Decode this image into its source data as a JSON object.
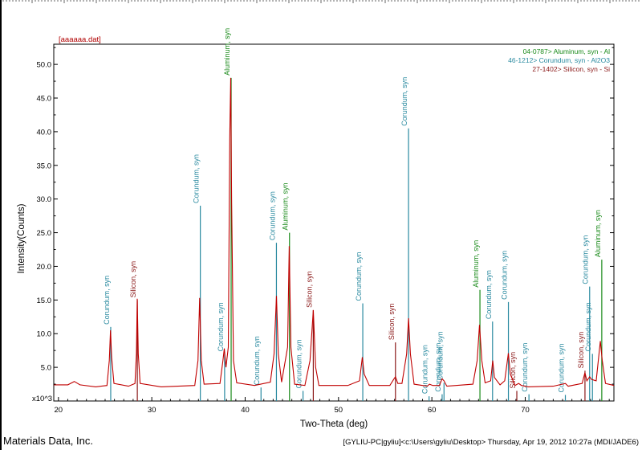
{
  "file_label": "[aaaaaa.dat]",
  "scale_mark": "x10^3",
  "footer_left": "Materials Data, Inc.",
  "footer_right": "[GYLIU-PC|gyliu]<c:\\Users\\gyliu\\Desktop> Thursday, Apr 19, 2012 10:27a (MDI/JADE6)",
  "colors": {
    "pattern": "#c00000",
    "aluminum": "#1a8a1a",
    "corundum": "#2a8aa0",
    "silicon": "#8b1a1a"
  },
  "chart_data": {
    "type": "line",
    "title": "",
    "xlabel": "Two-Theta (deg)",
    "ylabel": "Intensity(Counts)",
    "xlim": [
      19.5,
      79.5
    ],
    "ylim": [
      0,
      53
    ],
    "x_ticks": [
      20,
      30,
      40,
      50,
      60,
      70
    ],
    "y_ticks": [
      "5.0",
      "10.0",
      "15.0",
      "20.0",
      "25.0",
      "30.0",
      "35.0",
      "40.0",
      "45.0",
      "50.0"
    ],
    "legend": [
      {
        "text": "04-0787> Aluminum, syn - Al",
        "phase": "aluminum"
      },
      {
        "text": "46-1212> Corundum, syn - Al2O3",
        "phase": "corundum"
      },
      {
        "text": "27-1402> Silicon, syn - Si",
        "phase": "silicon"
      }
    ],
    "series": [
      {
        "values": [
          [
            19.5,
            2.4
          ],
          [
            21,
            2.4
          ],
          [
            21.7,
            2.9
          ],
          [
            22.3,
            2.4
          ],
          [
            24,
            2.1
          ],
          [
            25.2,
            2.3
          ],
          [
            25.45,
            6
          ],
          [
            25.58,
            10.5
          ],
          [
            25.7,
            6.5
          ],
          [
            25.95,
            2.6
          ],
          [
            27.5,
            2.2
          ],
          [
            28.2,
            2.6
          ],
          [
            28.35,
            7
          ],
          [
            28.44,
            15.2
          ],
          [
            28.55,
            7
          ],
          [
            28.75,
            2.6
          ],
          [
            31,
            2.1
          ],
          [
            34.6,
            2.3
          ],
          [
            34.95,
            6
          ],
          [
            35.13,
            15.3
          ],
          [
            35.3,
            6
          ],
          [
            35.6,
            2.5
          ],
          [
            37.3,
            2.6
          ],
          [
            37.62,
            6
          ],
          [
            37.77,
            7.8
          ],
          [
            37.95,
            5
          ],
          [
            38.2,
            8
          ],
          [
            38.35,
            39
          ],
          [
            38.45,
            48
          ],
          [
            38.55,
            30
          ],
          [
            38.75,
            6
          ],
          [
            39.1,
            2.7
          ],
          [
            41,
            2.3
          ],
          [
            42.7,
            2.8
          ],
          [
            43.1,
            7
          ],
          [
            43.35,
            15.6
          ],
          [
            43.55,
            7
          ],
          [
            43.9,
            2.8
          ],
          [
            44.55,
            8
          ],
          [
            44.72,
            23
          ],
          [
            44.9,
            8
          ],
          [
            45.3,
            2.5
          ],
          [
            46.4,
            2.3
          ],
          [
            46.95,
            6
          ],
          [
            47.3,
            13.5
          ],
          [
            47.55,
            5
          ],
          [
            47.9,
            2.3
          ],
          [
            51,
            2.3
          ],
          [
            52.25,
            3
          ],
          [
            52.55,
            6.5
          ],
          [
            52.75,
            4
          ],
          [
            53.3,
            2.3
          ],
          [
            55.5,
            2.3
          ],
          [
            55.95,
            3.3
          ],
          [
            56.1,
            3.6
          ],
          [
            56.35,
            2.6
          ],
          [
            56.8,
            2.6
          ],
          [
            57.3,
            7
          ],
          [
            57.5,
            12.3
          ],
          [
            57.7,
            7
          ],
          [
            58.1,
            2.5
          ],
          [
            59.5,
            2.2
          ],
          [
            59.75,
            2.5
          ],
          [
            60.1,
            2.3
          ],
          [
            60.8,
            2.3
          ],
          [
            61.1,
            3.3
          ],
          [
            61.3,
            3
          ],
          [
            61.6,
            2.2
          ],
          [
            64.4,
            2.5
          ],
          [
            64.85,
            6
          ],
          [
            65.1,
            11.3
          ],
          [
            65.35,
            6
          ],
          [
            65.7,
            2.7
          ],
          [
            66.3,
            3
          ],
          [
            66.52,
            6
          ],
          [
            66.7,
            3.5
          ],
          [
            67.3,
            2.4
          ],
          [
            67.8,
            3
          ],
          [
            68.2,
            7.1
          ],
          [
            68.4,
            4
          ],
          [
            68.9,
            2.3
          ],
          [
            69.3,
            2.6
          ],
          [
            69.6,
            2.3
          ],
          [
            70.3,
            2.1
          ],
          [
            73,
            2.2
          ],
          [
            74.3,
            2.6
          ],
          [
            74.6,
            2.2
          ],
          [
            76.1,
            2.6
          ],
          [
            76.4,
            4.2
          ],
          [
            76.6,
            3
          ],
          [
            76.9,
            3.6
          ],
          [
            77.1,
            3.2
          ],
          [
            77.6,
            3
          ],
          [
            78.05,
            8.9
          ],
          [
            78.25,
            6
          ],
          [
            78.6,
            2.6
          ],
          [
            79.5,
            2.3
          ]
        ]
      }
    ],
    "peaks": [
      {
        "x": 25.6,
        "h": 11,
        "phase": "corundum",
        "label": "Corundum, syn"
      },
      {
        "x": 28.45,
        "h": 15,
        "phase": "silicon",
        "label": "Silicon, syn"
      },
      {
        "x": 35.2,
        "h": 29,
        "phase": "corundum",
        "label": "Corundum, syn"
      },
      {
        "x": 37.8,
        "h": 7,
        "phase": "corundum",
        "label": "Corundum, syn"
      },
      {
        "x": 38.5,
        "h": 48,
        "phase": "aluminum",
        "label": "Aluminum, syn"
      },
      {
        "x": 41.7,
        "h": 2,
        "phase": "corundum",
        "label": "Corundum, syn"
      },
      {
        "x": 43.35,
        "h": 23.5,
        "phase": "corundum",
        "label": "Corundum, syn"
      },
      {
        "x": 44.75,
        "h": 25,
        "phase": "aluminum",
        "label": "Aluminum, syn"
      },
      {
        "x": 46.2,
        "h": 1.5,
        "phase": "corundum",
        "label": "Corundum, syn"
      },
      {
        "x": 47.3,
        "h": 13.5,
        "phase": "silicon",
        "label": "Silicon, syn"
      },
      {
        "x": 52.6,
        "h": 14.5,
        "phase": "corundum",
        "label": "Corundum, syn"
      },
      {
        "x": 56.1,
        "h": 8.7,
        "phase": "silicon",
        "label": "Silicon, syn"
      },
      {
        "x": 57.5,
        "h": 40.5,
        "phase": "corundum",
        "label": "Corundum, syn"
      },
      {
        "x": 59.7,
        "h": 0.7,
        "phase": "corundum",
        "label": "Corundum, syn"
      },
      {
        "x": 61.1,
        "h": 1,
        "phase": "corundum",
        "label": "Corundum, syn"
      },
      {
        "x": 61.3,
        "h": 2.7,
        "phase": "corundum",
        "label": "Corundum, syn"
      },
      {
        "x": 65.15,
        "h": 16.5,
        "phase": "aluminum",
        "label": "Aluminum, syn"
      },
      {
        "x": 66.5,
        "h": 11.8,
        "phase": "corundum",
        "label": "Corundum, syn"
      },
      {
        "x": 68.2,
        "h": 14.7,
        "phase": "corundum",
        "label": "Corundum, syn"
      },
      {
        "x": 69.1,
        "h": 1.5,
        "phase": "silicon",
        "label": "Silicon, syn"
      },
      {
        "x": 70.4,
        "h": 1,
        "phase": "corundum",
        "label": "Corundum, syn"
      },
      {
        "x": 74.3,
        "h": 0.9,
        "phase": "corundum",
        "label": "Corundum, syn"
      },
      {
        "x": 76.4,
        "h": 4.5,
        "phase": "silicon",
        "label": "Silicon, syn"
      },
      {
        "x": 76.9,
        "h": 17,
        "phase": "corundum",
        "label": "Corundum, syn"
      },
      {
        "x": 77.2,
        "h": 7,
        "phase": "corundum",
        "label": "Corundum, syn"
      },
      {
        "x": 78.2,
        "h": 21,
        "phase": "aluminum",
        "label": "Aluminum, syn"
      }
    ]
  }
}
